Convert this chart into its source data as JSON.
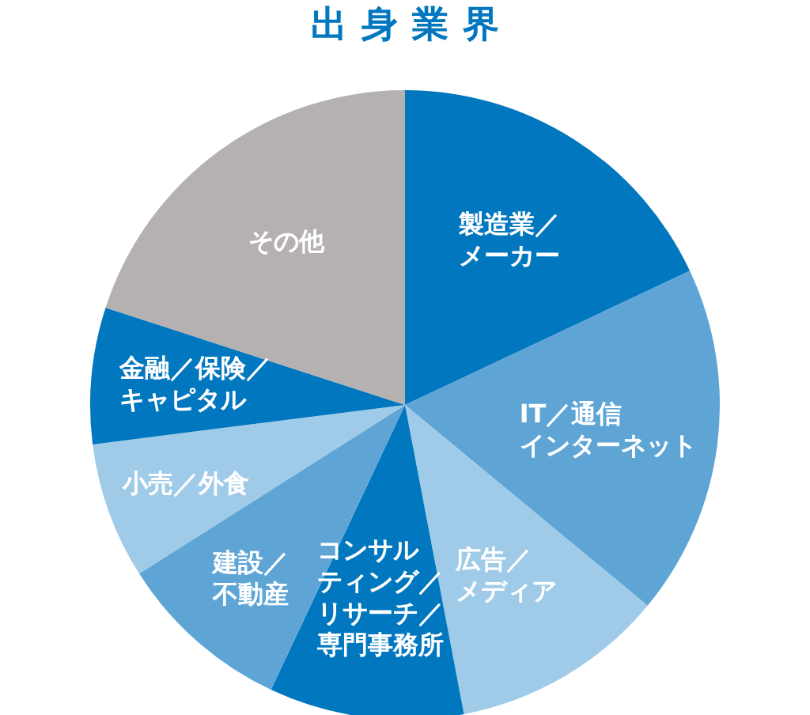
{
  "chart_data": {
    "type": "pie",
    "title": "出身業界",
    "categories": [
      "製造業／メーカー",
      "IT／通信インターネット",
      "広告／メディア",
      "コンサルティング／リサーチ／専門事務所",
      "建設／不動産",
      "小売／外食",
      "金融／保険／キャピタル",
      "その他"
    ],
    "values": [
      18,
      18,
      11,
      10,
      9,
      7,
      7,
      20
    ],
    "colors": [
      "#0077be",
      "#5ea5d6",
      "#9fcbe8",
      "#0077be",
      "#5ea5d6",
      "#9fcbe8",
      "#0077be",
      "#b5b1b0"
    ]
  }
}
